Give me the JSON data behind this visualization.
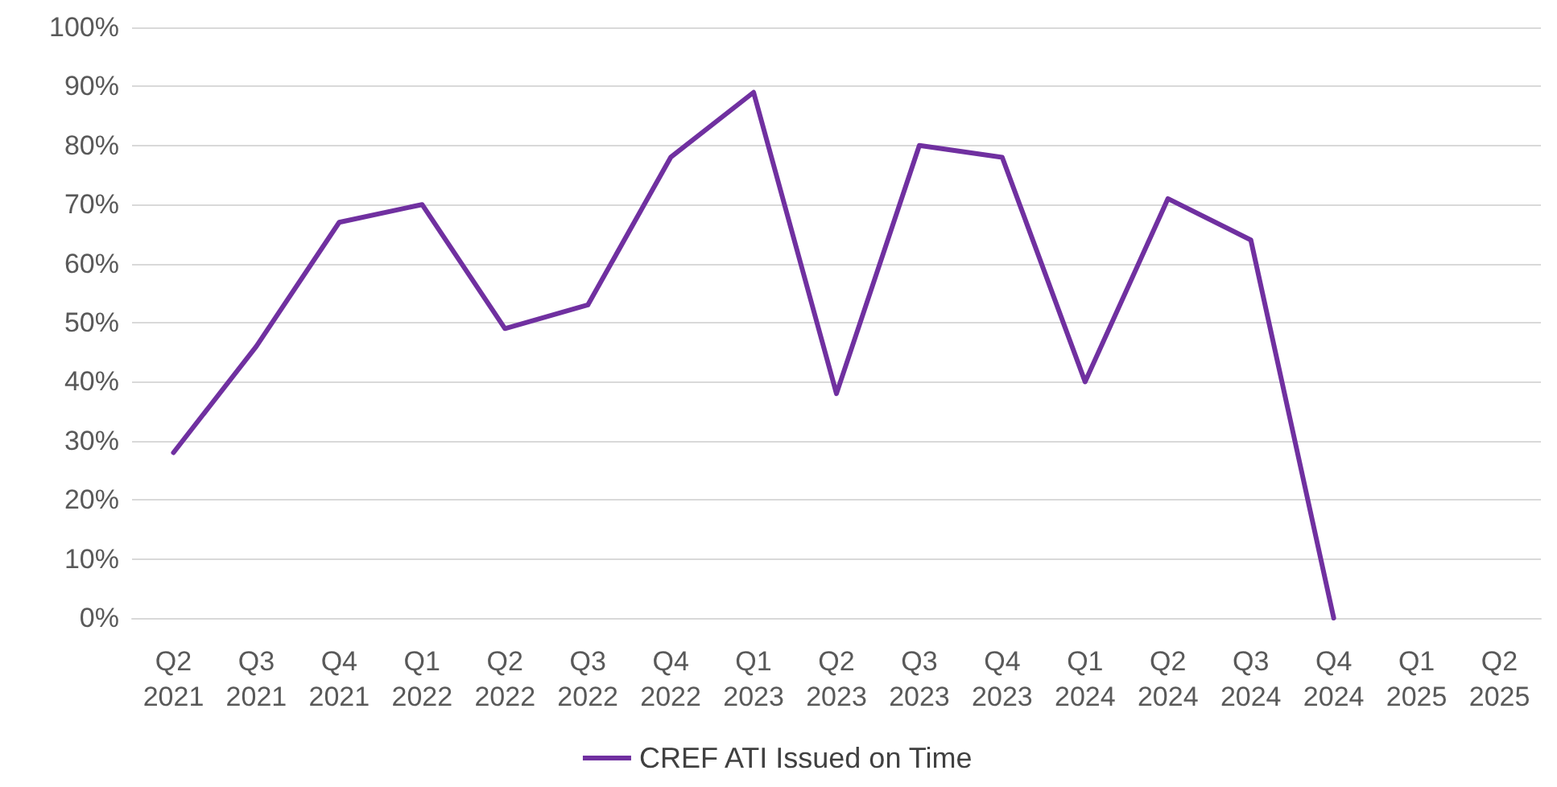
{
  "chart_data": {
    "type": "line",
    "categories": [
      "Q2 2021",
      "Q3 2021",
      "Q4 2021",
      "Q1 2022",
      "Q2 2022",
      "Q3 2022",
      "Q4 2022",
      "Q1 2023",
      "Q2 2023",
      "Q3 2023",
      "Q4 2023",
      "Q1 2024",
      "Q2 2024",
      "Q3 2024",
      "Q4 2024",
      "Q1 2025",
      "Q2 2025"
    ],
    "series": [
      {
        "name": "CREF ATI Issued on Time",
        "color": "#7030a0",
        "values": [
          28,
          46,
          67,
          70,
          49,
          53,
          78,
          89,
          38,
          80,
          78,
          40,
          71,
          64,
          0,
          null,
          null
        ]
      }
    ],
    "ylim": [
      0,
      100
    ],
    "yticks": [
      {
        "value": 0,
        "label": "0%"
      },
      {
        "value": 10,
        "label": "10%"
      },
      {
        "value": 20,
        "label": "20%"
      },
      {
        "value": 30,
        "label": "30%"
      },
      {
        "value": 40,
        "label": "40%"
      },
      {
        "value": 50,
        "label": "50%"
      },
      {
        "value": 60,
        "label": "60%"
      },
      {
        "value": 70,
        "label": "70%"
      },
      {
        "value": 80,
        "label": "80%"
      },
      {
        "value": 90,
        "label": "90%"
      },
      {
        "value": 100,
        "label": "100%"
      }
    ],
    "grid": "y",
    "legend": "bottom",
    "marker": "none",
    "line_style": "solid"
  }
}
